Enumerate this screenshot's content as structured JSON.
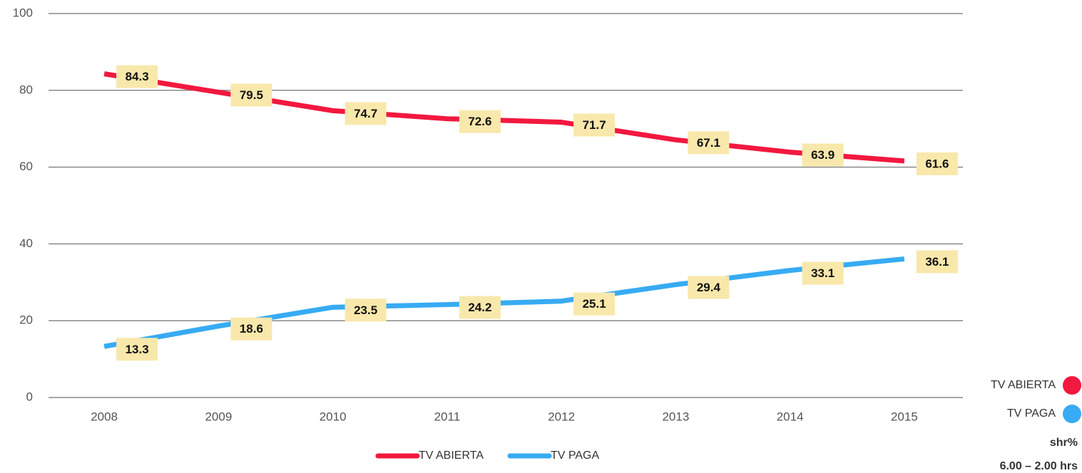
{
  "chart_data": {
    "type": "line",
    "categories": [
      "2008",
      "2009",
      "2010",
      "2011",
      "2012",
      "2013",
      "2014",
      "2015"
    ],
    "series": [
      {
        "name": "TV ABIERTA",
        "color": "#f2183f",
        "values": [
          84.3,
          79.5,
          74.7,
          72.6,
          71.7,
          67.1,
          63.9,
          61.6
        ]
      },
      {
        "name": "TV PAGA",
        "color": "#37abf3",
        "values": [
          13.3,
          18.6,
          23.5,
          24.2,
          25.1,
          29.4,
          33.1,
          36.1
        ]
      }
    ],
    "ylim": [
      0,
      100
    ],
    "yticks": [
      0,
      20,
      40,
      60,
      80,
      100
    ],
    "grid": true,
    "label_color": "#f9e8ab",
    "annotations": [
      "shr%",
      "6.00 – 2.00 hrs"
    ]
  }
}
